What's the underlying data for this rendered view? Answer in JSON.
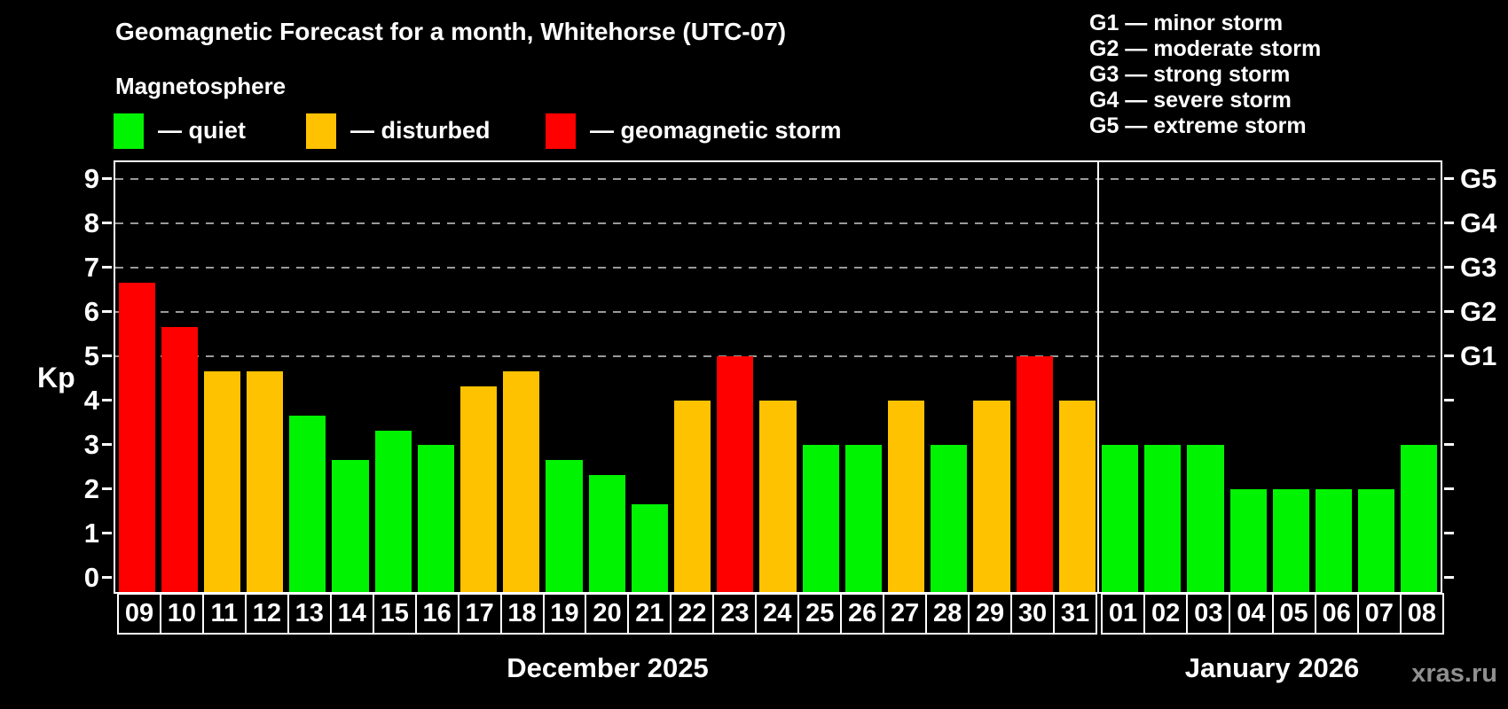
{
  "title": "Geomagnetic Forecast for a month, Whitehorse (UTC-07)",
  "subtitle": "Magnetosphere",
  "watermark": "xras.ru",
  "y_axis": {
    "label": "Kp",
    "ticks": [
      0,
      1,
      2,
      3,
      4,
      5,
      6,
      7,
      8,
      9
    ]
  },
  "g_scale_legend": [
    "G1 — minor storm",
    "G2 — moderate storm",
    "G3 — strong storm",
    "G4 — severe storm",
    "G5 — extreme storm"
  ],
  "legend": {
    "items": [
      {
        "status": "quiet",
        "label": "— quiet"
      },
      {
        "status": "disturbed",
        "label": "— disturbed"
      },
      {
        "status": "storm",
        "label": "— geomagnetic storm"
      }
    ]
  },
  "colors": {
    "quiet": "#00f300",
    "disturbed": "#ffc200",
    "storm": "#ff0000",
    "grid": "#9a9a9a",
    "axis": "#ffffff",
    "background": "#000000",
    "watermark": "#8f8f8f"
  },
  "chart_data": {
    "type": "bar",
    "title": "Geomagnetic Forecast for a month, Whitehorse (UTC-07)",
    "subtitle": "Magnetosphere",
    "xlabel": "",
    "ylabel": "Kp",
    "ylim": [
      0,
      9.4
    ],
    "yticks": [
      0,
      1,
      2,
      3,
      4,
      5,
      6,
      7,
      8,
      9
    ],
    "grid": "dashed horizontal lines at Kp 5-9 (G1-G5 levels) only",
    "gridlines_at": [
      5,
      6,
      7,
      8,
      9
    ],
    "legend_position": "top-left",
    "right_axis_labels": {
      "5": "G1",
      "6": "G2",
      "7": "G3",
      "8": "G4",
      "9": "G5"
    },
    "groups": [
      {
        "key": "dec",
        "label": "December 2025",
        "categories": [
          "09",
          "10",
          "11",
          "12",
          "13",
          "14",
          "15",
          "16",
          "17",
          "18",
          "19",
          "20",
          "21",
          "22",
          "23",
          "24",
          "25",
          "26",
          "27",
          "28",
          "29",
          "30",
          "31"
        ],
        "values": [
          6.67,
          5.67,
          4.67,
          4.67,
          3.67,
          2.67,
          3.33,
          3,
          4.33,
          4.67,
          2.67,
          2.33,
          1.67,
          4,
          5,
          4,
          3,
          3,
          4,
          3,
          4,
          5,
          4
        ],
        "statuses": [
          "storm",
          "storm",
          "disturbed",
          "disturbed",
          "quiet",
          "quiet",
          "quiet",
          "quiet",
          "disturbed",
          "disturbed",
          "quiet",
          "quiet",
          "quiet",
          "disturbed",
          "storm",
          "disturbed",
          "quiet",
          "quiet",
          "disturbed",
          "quiet",
          "disturbed",
          "storm",
          "disturbed"
        ]
      },
      {
        "key": "jan",
        "label": "January 2026",
        "categories": [
          "01",
          "02",
          "03",
          "04",
          "05",
          "06",
          "07",
          "08"
        ],
        "values": [
          3,
          3,
          3,
          2,
          2,
          2,
          2,
          3
        ],
        "statuses": [
          "quiet",
          "quiet",
          "quiet",
          "quiet",
          "quiet",
          "quiet",
          "quiet",
          "quiet"
        ]
      }
    ]
  }
}
